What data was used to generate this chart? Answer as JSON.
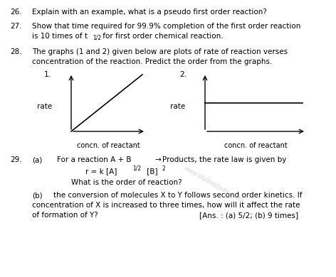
{
  "bg_color": "#ffffff",
  "text_color": "#000000",
  "q26_num": "26.",
  "q26_text": "Explain with an example, what is a pseudo first order reaction?",
  "q27_num": "27.",
  "q27_line1": "Show that time required for 99.9% completion of the first order reaction",
  "q27_line2_pre": "is 10 times of t",
  "q27_line2_sub": "1/2",
  "q27_line2_post": " for first order chemical reaction.",
  "q28_num": "28.",
  "q28_line1": "The graphs (1 and 2) given below are plots of rate of reaction verses",
  "q28_line2": "concentration of the reaction. Predict the order from the graphs.",
  "graph1_num": "1.",
  "graph2_num": "2.",
  "rate_label": "rate",
  "x_label": "concn. of reactant",
  "q29_num": "29.",
  "q29a_tag": "(a)",
  "q29a_text": "For a reaction A + B  Products, the rate law is given by",
  "q29a_arrow": "→",
  "q29_eq_pre": "r = k [A]",
  "q29_eq_sup1": "1/2",
  "q29_eq_mid": " [B]",
  "q29_eq_sup2": "2",
  "q29_what": "What is the order of reaction?",
  "q29b_tag": "(b)",
  "q29b_line1": "the conversion of molecules X to Y follows second order kinetics. If",
  "q29b_line2": "concentration of X is increased to three times, how will it affect the rate",
  "q29b_line3": "of formation of Y?",
  "q29b_ans": "[Ans. : (a) 5/2; (b) 9 times]",
  "watermark": "www.studiestoday.com",
  "fs": 7.5,
  "fs_sub": 5.5,
  "fs_sup": 5.5
}
